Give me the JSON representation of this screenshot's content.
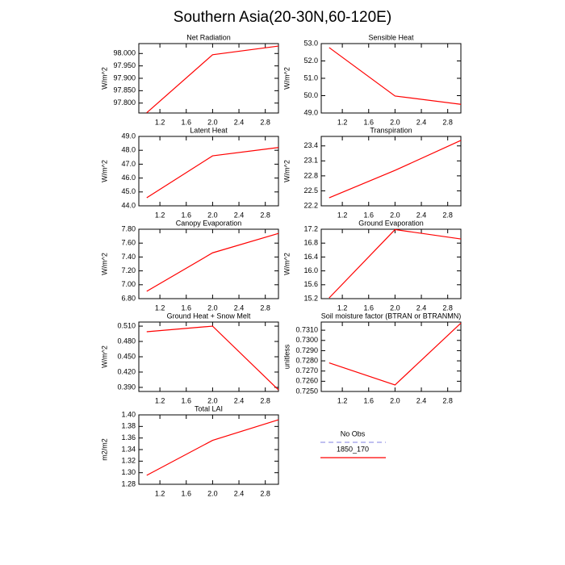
{
  "title": "Southern Asia(20-30N,60-120E)",
  "legend": [
    {
      "name": "No Obs",
      "color": "#9a9ae6",
      "dash": true
    },
    {
      "name": "1850_170",
      "color": "#ff0000",
      "dash": false
    }
  ],
  "chart_data": [
    {
      "type": "line",
      "title": "Net Radiation",
      "y_label": "W/m^2",
      "x": [
        1,
        2,
        3
      ],
      "values": [
        97.761,
        97.995,
        98.03
      ],
      "color": "#ff0000",
      "xlim": [
        0.88,
        3.0
      ],
      "xticks": [
        1.2,
        1.6,
        {
          "value": 2,
          "label": "2.0"
        },
        2.4,
        2.8
      ],
      "ylim": [
        97.76,
        98.04
      ],
      "yticks": [
        {
          "value": 97.8,
          "label": "97.800"
        },
        {
          "value": 97.85,
          "label": "97.850"
        },
        {
          "value": 97.9,
          "label": "97.900"
        },
        {
          "value": 97.95,
          "label": "97.950"
        },
        {
          "value": 98,
          "label": "98.000"
        }
      ]
    },
    {
      "type": "line",
      "title": "Sensible Heat",
      "y_label": "W/m^2",
      "x": [
        1,
        2,
        3
      ],
      "values": [
        52.77,
        49.98,
        49.5
      ],
      "color": "#ff0000",
      "xlim": [
        0.88,
        3.0
      ],
      "xticks": [
        1.2,
        1.6,
        {
          "value": 2,
          "label": "2.0"
        },
        2.4,
        2.8
      ],
      "ylim": [
        49,
        53
      ],
      "yticks": [
        {
          "value": 49,
          "label": "49.0"
        },
        {
          "value": 50,
          "label": "50.0"
        },
        {
          "value": 51,
          "label": "51.0"
        },
        {
          "value": 52,
          "label": "52.0"
        },
        {
          "value": 53,
          "label": "53.0"
        }
      ]
    },
    {
      "type": "line",
      "title": "Latent Heat",
      "y_label": "W/m^2",
      "x": [
        1,
        2,
        3
      ],
      "values": [
        44.58,
        47.6,
        48.2
      ],
      "color": "#ff0000",
      "xlim": [
        0.88,
        3.0
      ],
      "xticks": [
        1.2,
        1.6,
        {
          "value": 2,
          "label": "2.0"
        },
        2.4,
        2.8
      ],
      "ylim": [
        44,
        49
      ],
      "yticks": [
        {
          "value": 44,
          "label": "44.0"
        },
        {
          "value": 45,
          "label": "45.0"
        },
        {
          "value": 46,
          "label": "46.0"
        },
        {
          "value": 47,
          "label": "47.0"
        },
        {
          "value": 48,
          "label": "48.0"
        },
        {
          "value": 49,
          "label": "49.0"
        }
      ]
    },
    {
      "type": "line",
      "title": "Transpiration",
      "y_label": "W/m^2",
      "x": [
        1,
        2,
        3
      ],
      "values": [
        22.36,
        22.91,
        23.51
      ],
      "color": "#ff0000",
      "xlim": [
        0.88,
        3.0
      ],
      "xticks": [
        1.2,
        1.6,
        {
          "value": 2,
          "label": "2.0"
        },
        2.4,
        2.8
      ],
      "ylim": [
        22.2,
        23.59
      ],
      "yticks": [
        22.2,
        22.5,
        22.8,
        23.1,
        23.4
      ]
    },
    {
      "type": "line",
      "title": "Canopy Evaporation",
      "y_label": "W/m^2",
      "x": [
        1,
        2,
        3
      ],
      "values": [
        6.906,
        7.46,
        7.74
      ],
      "color": "#ff0000",
      "xlim": [
        0.88,
        3.0
      ],
      "xticks": [
        1.2,
        1.6,
        {
          "value": 2,
          "label": "2.0"
        },
        2.4,
        2.8
      ],
      "ylim": [
        6.8,
        7.8
      ],
      "yticks": [
        {
          "value": 6.8,
          "label": "6.80"
        },
        {
          "value": 7,
          "label": "7.00"
        },
        {
          "value": 7.2,
          "label": "7.20"
        },
        {
          "value": 7.4,
          "label": "7.40"
        },
        {
          "value": 7.6,
          "label": "7.60"
        },
        {
          "value": 7.8,
          "label": "7.80"
        }
      ]
    },
    {
      "type": "line",
      "title": "Ground Evaporation",
      "y_label": "W/m^2",
      "x": [
        1,
        2,
        3
      ],
      "values": [
        15.22,
        17.19,
        16.92
      ],
      "color": "#ff0000",
      "xlim": [
        0.88,
        3.0
      ],
      "xticks": [
        1.2,
        1.6,
        {
          "value": 2,
          "label": "2.0"
        },
        2.4,
        2.8
      ],
      "ylim": [
        15.2,
        17.2
      ],
      "yticks": [
        15.2,
        15.6,
        {
          "value": 16,
          "label": "16.0"
        },
        16.4,
        16.8,
        17.2
      ]
    },
    {
      "type": "line",
      "title": "Ground Heat + Snow Melt",
      "y_label": "W/m^2",
      "x": [
        1,
        2,
        3
      ],
      "values": [
        0.499,
        0.51,
        0.385
      ],
      "color": "#ff0000",
      "xlim": [
        0.88,
        3.0
      ],
      "xticks": [
        1.2,
        1.6,
        {
          "value": 2,
          "label": "2.0"
        },
        2.4,
        2.8
      ],
      "ylim": [
        0.382,
        0.518
      ],
      "yticks": [
        {
          "value": 0.39,
          "label": "0.390"
        },
        {
          "value": 0.42,
          "label": "0.420"
        },
        {
          "value": 0.45,
          "label": "0.450"
        },
        {
          "value": 0.48,
          "label": "0.480"
        },
        {
          "value": 0.51,
          "label": "0.510"
        }
      ]
    },
    {
      "type": "line",
      "title": "Soil moisture factor (BTRAN or BTRANMN)",
      "y_label": "unitless",
      "x": [
        1,
        2,
        3
      ],
      "values": [
        0.7278,
        0.72564,
        0.7317
      ],
      "color": "#ff0000",
      "xlim": [
        0.88,
        3.0
      ],
      "xticks": [
        1.2,
        1.6,
        {
          "value": 2,
          "label": "2.0"
        },
        2.4,
        2.8
      ],
      "ylim": [
        0.725,
        0.7318
      ],
      "yticks": [
        {
          "value": 0.725,
          "label": "0.7250"
        },
        {
          "value": 0.726,
          "label": "0.7260"
        },
        {
          "value": 0.727,
          "label": "0.7270"
        },
        {
          "value": 0.728,
          "label": "0.7280"
        },
        {
          "value": 0.729,
          "label": "0.7290"
        },
        {
          "value": 0.73,
          "label": "0.7300"
        },
        {
          "value": 0.731,
          "label": "0.7310"
        }
      ]
    },
    {
      "type": "line",
      "title": "Total LAI",
      "y_label": "m2/m2",
      "x": [
        1,
        2,
        3
      ],
      "values": [
        1.2955,
        1.356,
        1.3915
      ],
      "color": "#ff0000",
      "xlim": [
        0.88,
        3.0
      ],
      "xticks": [
        1.2,
        1.6,
        {
          "value": 2,
          "label": "2.0"
        },
        2.4,
        2.8
      ],
      "ylim": [
        1.28,
        1.4
      ],
      "yticks": [
        1.28,
        {
          "value": 1.3,
          "label": "1.30"
        },
        1.32,
        1.34,
        1.36,
        1.38,
        {
          "value": 1.4,
          "label": "1.40"
        }
      ]
    }
  ]
}
